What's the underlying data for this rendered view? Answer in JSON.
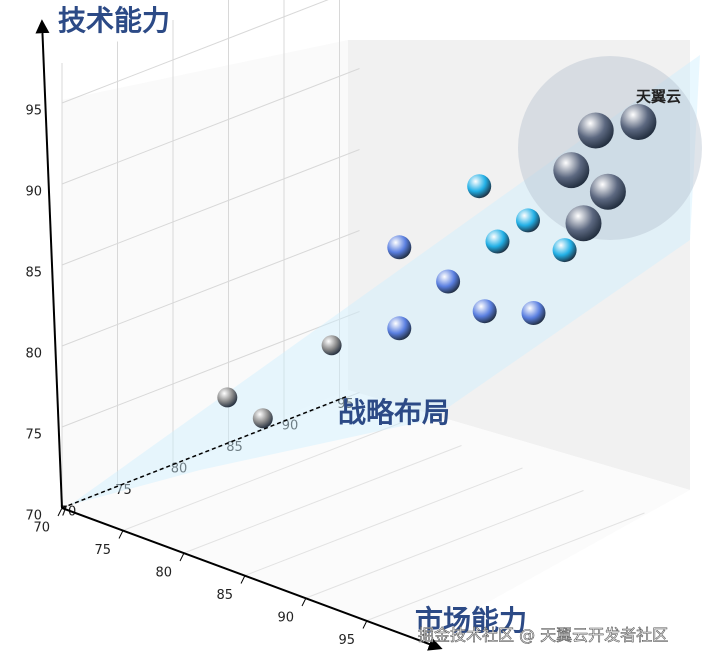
{
  "chart_data": {
    "type": "scatter3d",
    "y_label": "技术能力",
    "x_label": "市场能力",
    "z_label": "战略布局",
    "xlim": [
      70,
      95
    ],
    "xticks": [
      70,
      75,
      80,
      85,
      90,
      95
    ],
    "zlim": [
      70,
      95
    ],
    "zticks": [
      70,
      75,
      80,
      85,
      90,
      95
    ],
    "ylim": [
      70,
      95
    ],
    "yticks": [
      70,
      75,
      80,
      85,
      90,
      95
    ],
    "grid": true,
    "series": [
      {
        "color": "#8a8a8a",
        "x": [
          79,
          81,
          83
        ],
        "z": [
          75,
          76,
          80
        ],
        "values": [
          78,
          77,
          81
        ]
      },
      {
        "color": "#5a7fe0",
        "x": [
          84,
          88,
          84,
          91,
          95
        ],
        "z": [
          85,
          85,
          85,
          85,
          85
        ],
        "values": [
          86,
          85,
          81,
          84,
          85
        ]
      },
      {
        "color": "#22b0e6",
        "x": [
          86,
          90,
          87.5,
          93
        ],
        "z": [
          90,
          90,
          90,
          90
        ],
        "values": [
          89,
          88,
          86,
          87
        ]
      },
      {
        "color": "#5c6880",
        "x": [
          91,
          94.5,
          89,
          92,
          90
        ],
        "z": [
          95,
          95,
          95,
          95,
          95
        ],
        "values": [
          92.5,
          94,
          89.5,
          89,
          86.5
        ]
      }
    ],
    "annotation": "天翼云",
    "watermark": "掘金技术社区 @ 天翼云开发者社区"
  }
}
